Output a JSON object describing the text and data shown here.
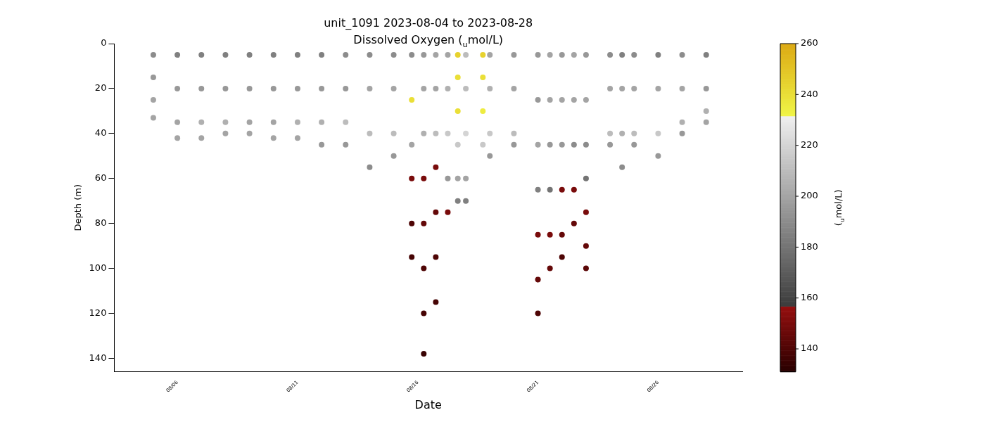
{
  "chart_data": {
    "type": "scatter",
    "title": "unit_1091 2023-08-04 to 2023-08-28",
    "subtitle": "Dissolved Oxygen ($_{u}$mol/L)",
    "xlabel": "Date",
    "ylabel": "Depth (m)",
    "clabel": "($_{u}$mol/L)",
    "xlim": [
      "2023-08-03T09:00",
      "2023-08-29T12:00"
    ],
    "xticks": [
      {
        "value": "2023-08-06",
        "label": "08/06"
      },
      {
        "value": "2023-08-11",
        "label": "08/11"
      },
      {
        "value": "2023-08-16",
        "label": "08/16"
      },
      {
        "value": "2023-08-21",
        "label": "08/21"
      },
      {
        "value": "2023-08-26",
        "label": "08/26"
      }
    ],
    "ylim": [
      146,
      0
    ],
    "yticks": [
      0,
      20,
      40,
      60,
      80,
      100,
      120,
      140
    ],
    "clim": [
      131,
      260
    ],
    "cticks": [
      140,
      160,
      180,
      200,
      220,
      240,
      260
    ],
    "grid": false,
    "legend": false,
    "marker": "circle",
    "x": [
      "2023-08-05T00:00",
      "2023-08-05T00:00",
      "2023-08-05T00:00",
      "2023-08-05T00:00",
      "2023-08-06T00:00",
      "2023-08-06T00:00",
      "2023-08-06T00:00",
      "2023-08-06T00:00",
      "2023-08-07T00:00",
      "2023-08-07T00:00",
      "2023-08-07T00:00",
      "2023-08-07T00:00",
      "2023-08-08T00:00",
      "2023-08-08T00:00",
      "2023-08-08T00:00",
      "2023-08-08T00:00",
      "2023-08-09T00:00",
      "2023-08-09T00:00",
      "2023-08-09T00:00",
      "2023-08-09T00:00",
      "2023-08-10T00:00",
      "2023-08-10T00:00",
      "2023-08-10T00:00",
      "2023-08-10T00:00",
      "2023-08-11T00:00",
      "2023-08-11T00:00",
      "2023-08-11T00:00",
      "2023-08-11T00:00",
      "2023-08-12T00:00",
      "2023-08-12T00:00",
      "2023-08-12T00:00",
      "2023-08-12T00:00",
      "2023-08-13T00:00",
      "2023-08-13T00:00",
      "2023-08-13T00:00",
      "2023-08-13T00:00",
      "2023-08-14T00:00",
      "2023-08-14T00:00",
      "2023-08-14T00:00",
      "2023-08-14T00:00",
      "2023-08-15T00:00",
      "2023-08-15T00:00",
      "2023-08-15T00:00",
      "2023-08-15T00:00",
      "2023-08-15T18:00",
      "2023-08-15T18:00",
      "2023-08-15T18:00",
      "2023-08-15T18:00",
      "2023-08-15T18:00",
      "2023-08-15T18:00",
      "2023-08-16T06:00",
      "2023-08-16T06:00",
      "2023-08-16T06:00",
      "2023-08-16T06:00",
      "2023-08-16T06:00",
      "2023-08-16T06:00",
      "2023-08-16T06:00",
      "2023-08-16T06:00",
      "2023-08-16T18:00",
      "2023-08-16T18:00",
      "2023-08-16T18:00",
      "2023-08-16T18:00",
      "2023-08-16T18:00",
      "2023-08-16T18:00",
      "2023-08-16T18:00",
      "2023-08-17T06:00",
      "2023-08-17T06:00",
      "2023-08-17T06:00",
      "2023-08-17T06:00",
      "2023-08-17T06:00",
      "2023-08-17T16:00",
      "2023-08-17T16:00",
      "2023-08-17T16:00",
      "2023-08-17T16:00",
      "2023-08-17T16:00",
      "2023-08-17T16:00",
      "2023-08-18T00:00",
      "2023-08-18T00:00",
      "2023-08-18T00:00",
      "2023-08-18T00:00",
      "2023-08-18T00:00",
      "2023-08-18T17:00",
      "2023-08-18T17:00",
      "2023-08-18T17:00",
      "2023-08-18T17:00",
      "2023-08-19T00:00",
      "2023-08-19T00:00",
      "2023-08-19T00:00",
      "2023-08-19T00:00",
      "2023-08-20T00:00",
      "2023-08-20T00:00",
      "2023-08-20T00:00",
      "2023-08-20T00:00",
      "2023-08-21T00:00",
      "2023-08-21T00:00",
      "2023-08-21T00:00",
      "2023-08-21T00:00",
      "2023-08-21T00:00",
      "2023-08-21T00:00",
      "2023-08-21T00:00",
      "2023-08-21T12:00",
      "2023-08-21T12:00",
      "2023-08-21T12:00",
      "2023-08-21T12:00",
      "2023-08-21T12:00",
      "2023-08-21T12:00",
      "2023-08-22T00:00",
      "2023-08-22T00:00",
      "2023-08-22T00:00",
      "2023-08-22T00:00",
      "2023-08-22T00:00",
      "2023-08-22T00:00",
      "2023-08-22T12:00",
      "2023-08-22T12:00",
      "2023-08-22T12:00",
      "2023-08-22T12:00",
      "2023-08-22T12:00",
      "2023-08-23T00:00",
      "2023-08-23T00:00",
      "2023-08-23T00:00",
      "2023-08-23T00:00",
      "2023-08-23T00:00",
      "2023-08-23T00:00",
      "2023-08-23T00:00",
      "2023-08-24T00:00",
      "2023-08-24T00:00",
      "2023-08-24T00:00",
      "2023-08-24T00:00",
      "2023-08-24T12:00",
      "2023-08-24T12:00",
      "2023-08-24T12:00",
      "2023-08-24T12:00",
      "2023-08-25T00:00",
      "2023-08-25T00:00",
      "2023-08-25T00:00",
      "2023-08-25T00:00",
      "2023-08-26T00:00",
      "2023-08-26T00:00",
      "2023-08-26T00:00",
      "2023-08-26T00:00",
      "2023-08-27T00:00",
      "2023-08-27T00:00",
      "2023-08-27T00:00",
      "2023-08-27T00:00",
      "2023-08-28T00:00",
      "2023-08-28T00:00",
      "2023-08-28T00:00",
      "2023-08-28T00:00"
    ],
    "values": [
      5,
      15,
      25,
      33,
      5,
      20,
      35,
      42,
      5,
      20,
      35,
      42,
      5,
      20,
      35,
      40,
      5,
      20,
      35,
      40,
      5,
      20,
      35,
      42,
      5,
      20,
      35,
      42,
      5,
      20,
      35,
      45,
      5,
      20,
      35,
      45,
      5,
      20,
      40,
      55,
      5,
      20,
      40,
      50,
      5,
      25,
      45,
      60,
      80,
      95,
      5,
      20,
      40,
      60,
      80,
      100,
      120,
      138,
      5,
      20,
      40,
      55,
      75,
      95,
      115,
      5,
      20,
      40,
      60,
      75,
      5,
      15,
      30,
      45,
      60,
      70,
      5,
      20,
      40,
      60,
      70,
      5,
      15,
      30,
      45,
      5,
      20,
      40,
      50,
      5,
      20,
      40,
      45,
      5,
      25,
      45,
      65,
      85,
      105,
      120,
      5,
      25,
      45,
      65,
      85,
      100,
      5,
      25,
      45,
      65,
      85,
      95,
      5,
      25,
      45,
      65,
      80,
      5,
      25,
      45,
      60,
      75,
      90,
      100,
      5,
      20,
      40,
      45,
      5,
      20,
      40,
      55,
      5,
      20,
      40,
      45,
      5,
      20,
      40,
      50,
      5,
      20,
      35,
      40,
      5,
      20,
      30,
      35
    ],
    "cvalues": [
      190,
      195,
      200,
      200,
      185,
      195,
      200,
      200,
      185,
      195,
      205,
      200,
      185,
      195,
      205,
      200,
      185,
      195,
      200,
      200,
      185,
      195,
      200,
      200,
      185,
      195,
      205,
      200,
      185,
      195,
      205,
      195,
      190,
      195,
      210,
      195,
      190,
      200,
      210,
      190,
      190,
      200,
      210,
      195,
      190,
      240,
      200,
      150,
      140,
      138,
      195,
      200,
      205,
      150,
      145,
      140,
      138,
      135,
      200,
      200,
      210,
      150,
      145,
      140,
      138,
      200,
      205,
      215,
      195,
      150,
      245,
      240,
      240,
      215,
      200,
      185,
      210,
      210,
      220,
      200,
      185,
      245,
      240,
      235,
      215,
      200,
      205,
      215,
      195,
      195,
      200,
      210,
      195,
      195,
      195,
      200,
      185,
      150,
      145,
      140,
      200,
      200,
      195,
      180,
      150,
      145,
      195,
      200,
      195,
      150,
      145,
      140,
      200,
      200,
      190,
      150,
      145,
      195,
      200,
      190,
      180,
      150,
      145,
      143,
      190,
      200,
      210,
      195,
      185,
      200,
      205,
      190,
      190,
      200,
      210,
      195,
      185,
      200,
      215,
      195,
      190,
      200,
      205,
      195,
      185,
      195,
      205,
      200
    ]
  }
}
